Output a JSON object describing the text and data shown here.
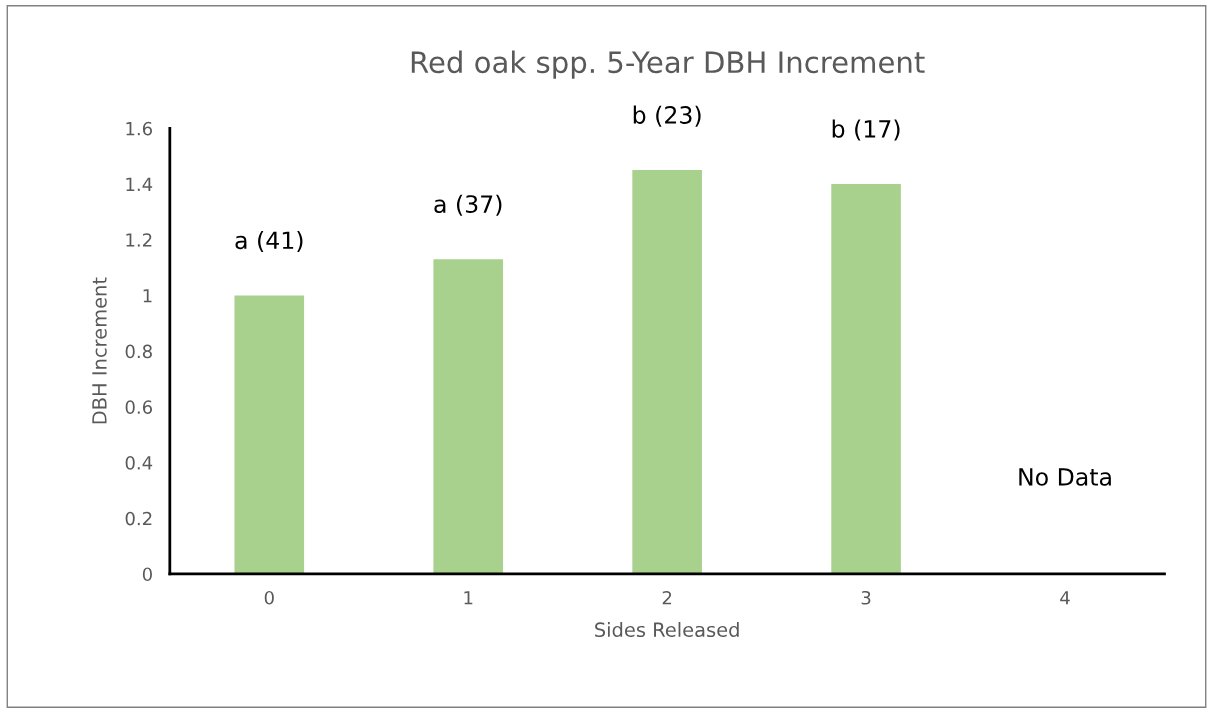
{
  "chart_data": {
    "type": "bar",
    "title": "Red oak spp. 5-Year DBH Increment",
    "xlabel": "Sides Released",
    "ylabel": "DBH Increment",
    "categories": [
      "0",
      "1",
      "2",
      "3",
      "4"
    ],
    "values": [
      1.0,
      1.13,
      1.45,
      1.4,
      null
    ],
    "color": "#a9d18e",
    "ylim": [
      0,
      1.6
    ],
    "yticks": [
      {
        "value": 0,
        "label": "0"
      },
      0.2,
      0.4,
      0.6,
      0.8,
      {
        "value": 1,
        "label": "1"
      },
      1.2,
      1.4,
      1.6
    ],
    "grid": false,
    "annotations": [
      "a (41)",
      "a (37)",
      "b (23)",
      "b (17)",
      "No Data"
    ]
  }
}
